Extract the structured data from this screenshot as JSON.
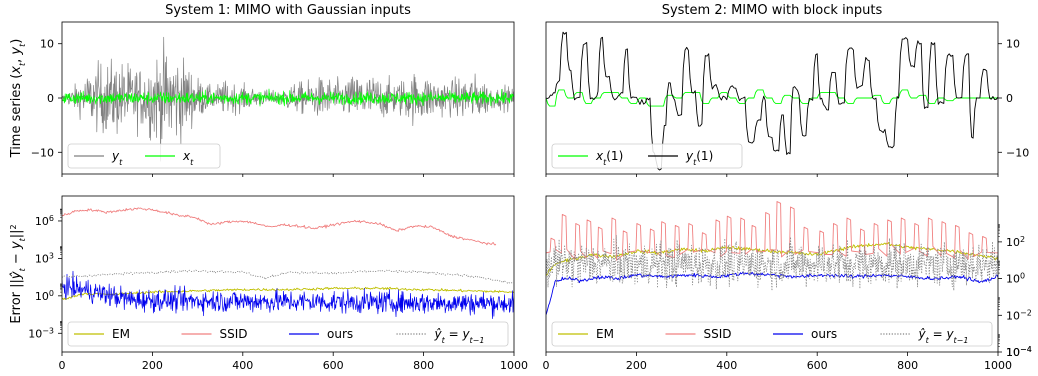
{
  "chart_data": [
    {
      "type": "line",
      "title": "System 1: MIMO with Gaussian inputs",
      "ylabel": "Time series (x_t, y_t)",
      "xlim": [
        0,
        1000
      ],
      "ylim": [
        -14,
        14
      ],
      "xticks": [],
      "yticks": [
        -10,
        0,
        10
      ],
      "ytick_labels": [
        "−10",
        "0",
        "10"
      ],
      "yaxis_side": "left",
      "legend": {
        "position": "bottom-left",
        "entries": [
          "y_t",
          "x_t"
        ],
        "ncol": 2
      },
      "series": [
        {
          "name": "y_t",
          "color": "#808080",
          "kind": "noise",
          "envelope": {
            "x": [
              0,
              40,
              80,
              120,
              150,
              180,
              200,
              220,
              240,
              250,
              260,
              280,
              300,
              330,
              360,
              400,
              440,
              480,
              500,
              540,
              580,
              620,
              660,
              700,
              740,
              780,
              820,
              860,
              900,
              940,
              960,
              980,
              1000
            ],
            "y": [
              0.5,
              4,
              8,
              9,
              8,
              7,
              10,
              12,
              12,
              11,
              10,
              8,
              5,
              2.5,
              4,
              3,
              2,
              1.5,
              3,
              4,
              5,
              4,
              6,
              5,
              4,
              6,
              5,
              4,
              6,
              4,
              2,
              3,
              2
            ]
          }
        },
        {
          "name": "x_t",
          "color": "#00ff00",
          "kind": "noise",
          "envelope": {
            "x": [
              0,
              1000
            ],
            "y": [
              1.5,
              1.5
            ]
          }
        }
      ]
    },
    {
      "type": "line",
      "title": "System 2: MIMO with block inputs",
      "ylabel": "",
      "xlim": [
        0,
        1000
      ],
      "ylim": [
        -14,
        14
      ],
      "xticks": [],
      "yticks": [
        -10,
        0,
        10
      ],
      "ytick_labels": [
        "−10",
        "0",
        "10"
      ],
      "yaxis_side": "right",
      "legend": {
        "position": "bottom-left",
        "entries": [
          "x_t(1)",
          "y_t(1)"
        ],
        "ncol": 2
      },
      "series": [
        {
          "name": "x_t(1)",
          "color": "#00ff00",
          "kind": "step",
          "x": [
            0,
            20,
            40,
            60,
            80,
            100,
            120,
            160,
            180,
            200,
            220,
            260,
            280,
            300,
            340,
            360,
            380,
            400,
            420,
            440,
            460,
            480,
            500,
            520,
            540,
            560,
            580,
            600,
            640,
            660,
            680,
            720,
            740,
            760,
            780,
            800,
            820,
            840,
            860,
            880,
            900,
            940,
            960,
            1000
          ],
          "y": [
            0,
            -1.5,
            1.5,
            0,
            1,
            -1,
            0,
            1,
            0,
            -1,
            0,
            -1.5,
            0.5,
            0,
            1,
            -1,
            0,
            1,
            0,
            -1,
            0,
            1.5,
            0,
            -1,
            0.5,
            0,
            -1,
            0,
            1,
            0,
            -1,
            0,
            0.5,
            -1,
            0,
            1.5,
            0,
            0.5,
            -1,
            0,
            -0.5,
            0,
            0,
            0
          ]
        },
        {
          "name": "y_t(1)",
          "color": "#000000",
          "kind": "step",
          "x": [
            0,
            10,
            20,
            30,
            45,
            55,
            75,
            90,
            110,
            115,
            125,
            140,
            160,
            170,
            180,
            200,
            220,
            230,
            240,
            255,
            265,
            275,
            285,
            300,
            315,
            330,
            345,
            360,
            380,
            400,
            420,
            440,
            460,
            475,
            485,
            500,
            515,
            525,
            540,
            550,
            560,
            575,
            590,
            600,
            610,
            625,
            640,
            660,
            680,
            700,
            715,
            730,
            750,
            770,
            780,
            800,
            815,
            830,
            845,
            860,
            880,
            900,
            920,
            935,
            945,
            960,
            975,
            985,
            1000
          ],
          "y": [
            0,
            0,
            1,
            3,
            12,
            5,
            0,
            10,
            0,
            1,
            11,
            4,
            0,
            1,
            9,
            0,
            -1,
            0,
            -10,
            -13,
            -5,
            3,
            0,
            -3,
            9,
            1,
            -5,
            8,
            2,
            0,
            2,
            0,
            -8,
            -4,
            0,
            -7,
            -10,
            -3,
            -10,
            2,
            1,
            -7,
            0,
            8,
            0,
            -2,
            5,
            -1,
            9,
            2,
            7,
            0,
            -6,
            -9,
            0,
            11,
            6,
            10,
            -2,
            10,
            -1,
            8,
            0,
            8,
            -7,
            0,
            5,
            0,
            0
          ]
        }
      ]
    },
    {
      "type": "line",
      "title": "",
      "ylabel": "Error ||ŷ_t − y_t||²",
      "yscale": "log",
      "xlim": [
        0,
        1000
      ],
      "ylim": [
        -4.5,
        8
      ],
      "xticks": [
        0,
        200,
        400,
        600,
        800,
        1000
      ],
      "yticks": [
        -3,
        0,
        3,
        6
      ],
      "yaxis_side": "left",
      "legend": {
        "position": "bottom",
        "entries": [
          "EM",
          "SSID",
          "ours",
          "ŷ_t = y_{t−1}"
        ],
        "ncol": 4
      },
      "series": [
        {
          "name": "EM",
          "color": "#bfbf00",
          "kind": "line",
          "x": [
            0,
            50,
            100,
            200,
            300,
            400,
            500,
            600,
            700,
            800,
            900,
            1000
          ],
          "y": [
            -0.3,
            0.2,
            0.1,
            0.3,
            0.4,
            0.5,
            0.5,
            0.6,
            0.6,
            0.5,
            0.4,
            0.3
          ]
        },
        {
          "name": "SSID",
          "color": "#f08080",
          "kind": "line",
          "x": [
            0,
            30,
            60,
            100,
            140,
            170,
            200,
            240,
            260,
            280,
            300,
            330,
            360,
            400,
            430,
            460,
            490,
            520,
            560,
            600,
            650,
            700,
            740,
            780,
            820,
            860,
            900,
            940,
            960
          ],
          "y": [
            6.4,
            6.8,
            6.9,
            6.7,
            6.9,
            7.0,
            6.9,
            6.6,
            6.4,
            6.4,
            6.2,
            5.7,
            5.9,
            6.0,
            5.8,
            5.5,
            5.7,
            5.6,
            5.4,
            5.7,
            6.0,
            5.8,
            5.2,
            5.6,
            5.5,
            4.8,
            4.5,
            4.2,
            4.1
          ]
        },
        {
          "name": "ours",
          "color": "#0000ee",
          "kind": "noise",
          "mean": [
            [
              0,
              0.8
            ],
            [
              60,
              0.4
            ],
            [
              150,
              -0.3
            ],
            [
              300,
              -0.4
            ],
            [
              1000,
              -0.6
            ]
          ],
          "spread": 1.0
        },
        {
          "name": "ŷ_t = y_{t−1}",
          "color": "#808080",
          "kind": "line",
          "style": "dotted",
          "x": [
            0,
            100,
            200,
            300,
            400,
            450,
            500,
            600,
            700,
            800,
            900,
            1000
          ],
          "y": [
            1.5,
            1.7,
            1.9,
            2.0,
            1.9,
            1.4,
            1.9,
            1.8,
            2.0,
            1.9,
            1.6,
            1.0
          ]
        }
      ]
    },
    {
      "type": "line",
      "title": "",
      "ylabel": "",
      "yscale": "log",
      "xlim": [
        0,
        1000
      ],
      "ylim": [
        -4,
        4.5
      ],
      "xticks": [
        0,
        200,
        400,
        600,
        800,
        1000
      ],
      "yticks": [
        -4,
        -2,
        0,
        2
      ],
      "yaxis_side": "right",
      "legend": {
        "position": "bottom",
        "entries": [
          "EM",
          "SSID",
          "ours",
          "ŷ_t = y_{t−1}"
        ],
        "ncol": 4
      },
      "series": [
        {
          "name": "EM",
          "color": "#bfbf00",
          "kind": "line",
          "x": [
            0,
            20,
            50,
            100,
            150,
            200,
            250,
            300,
            350,
            400,
            450,
            500,
            550,
            600,
            650,
            700,
            750,
            800,
            850,
            900,
            950,
            1000
          ],
          "y": [
            0.2,
            0.8,
            1.0,
            1.3,
            1.2,
            1.5,
            1.4,
            1.6,
            1.5,
            1.7,
            1.6,
            1.5,
            1.4,
            1.3,
            1.6,
            1.8,
            1.9,
            1.7,
            1.6,
            1.5,
            1.3,
            1.1
          ]
        },
        {
          "name": "SSID",
          "color": "#f08080",
          "kind": "pulses",
          "baseline": 1.4,
          "x": [
            15,
            40,
            70,
            95,
            120,
            150,
            175,
            205,
            235,
            260,
            290,
            320,
            350,
            380,
            405,
            435,
            460,
            490,
            515,
            545,
            575,
            610,
            640,
            670,
            700,
            730,
            760,
            790,
            820,
            850,
            880,
            910,
            940,
            970
          ],
          "y": [
            2.2,
            3.5,
            3.0,
            3.2,
            2.8,
            3.3,
            2.6,
            3.0,
            2.7,
            3.1,
            2.9,
            3.0,
            2.5,
            3.2,
            3.4,
            3.3,
            2.9,
            3.6,
            4.2,
            3.9,
            2.8,
            2.6,
            3.0,
            3.3,
            2.7,
            3.0,
            3.2,
            3.3,
            3.0,
            3.3,
            3.1,
            2.9,
            2.5,
            2.3
          ]
        },
        {
          "name": "ours",
          "color": "#0000ee",
          "kind": "line",
          "x": [
            0,
            20,
            40,
            80,
            120,
            160,
            200,
            260,
            320,
            380,
            440,
            500,
            560,
            620,
            680,
            740,
            800,
            860,
            920,
            960,
            1000
          ],
          "y": [
            -2.0,
            -0.2,
            0.0,
            -0.1,
            0.1,
            0.0,
            0.2,
            0.1,
            0.2,
            0.1,
            0.3,
            0.2,
            0.1,
            0.2,
            0.1,
            0.2,
            0.1,
            0.0,
            0.1,
            -0.2,
            0.1
          ]
        },
        {
          "name": "ŷ_t = y_{t−1}",
          "color": "#808080",
          "kind": "noise",
          "style": "dotted",
          "mean": [
            [
              0,
              0.8
            ],
            [
              1000,
              0.8
            ]
          ],
          "spread": 1.3
        }
      ]
    }
  ],
  "colors": {
    "em": "#bfbf00",
    "ssid": "#f08080",
    "ours": "#0000ee",
    "naive": "#808080",
    "xt": "#00ff00",
    "yt": "#808080",
    "yt1": "#000000"
  }
}
